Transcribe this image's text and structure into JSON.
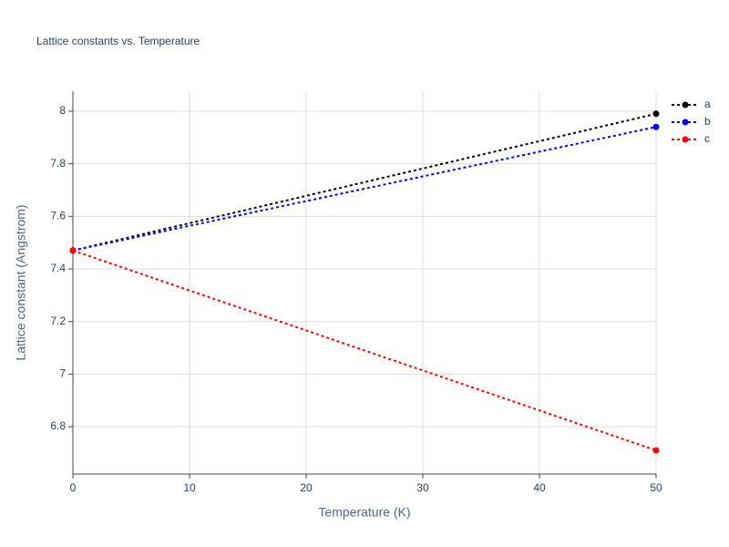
{
  "chart_data": {
    "type": "line",
    "title": "Lattice constants vs. Temperature",
    "x_label": "Temperature (K)",
    "y_label": "Lattice constant (Angstrom)",
    "x": [
      0,
      50
    ],
    "series": [
      {
        "name": "a",
        "color": "#000000",
        "values": [
          7.47,
          7.99
        ]
      },
      {
        "name": "b",
        "color": "#0000ff",
        "values": [
          7.47,
          7.94
        ]
      },
      {
        "name": "c",
        "color": "#ff0000",
        "values": [
          7.47,
          6.71
        ]
      }
    ],
    "xlim": [
      0,
      50
    ],
    "xticks": [
      0,
      10,
      20,
      30,
      40,
      50
    ],
    "ylim": [
      6.62,
      8.076
    ],
    "yticks": [
      6.8,
      7,
      7.2,
      7.4,
      7.6,
      7.8,
      8
    ],
    "grid": true,
    "line_style": "dotted",
    "legend": "top-right"
  }
}
